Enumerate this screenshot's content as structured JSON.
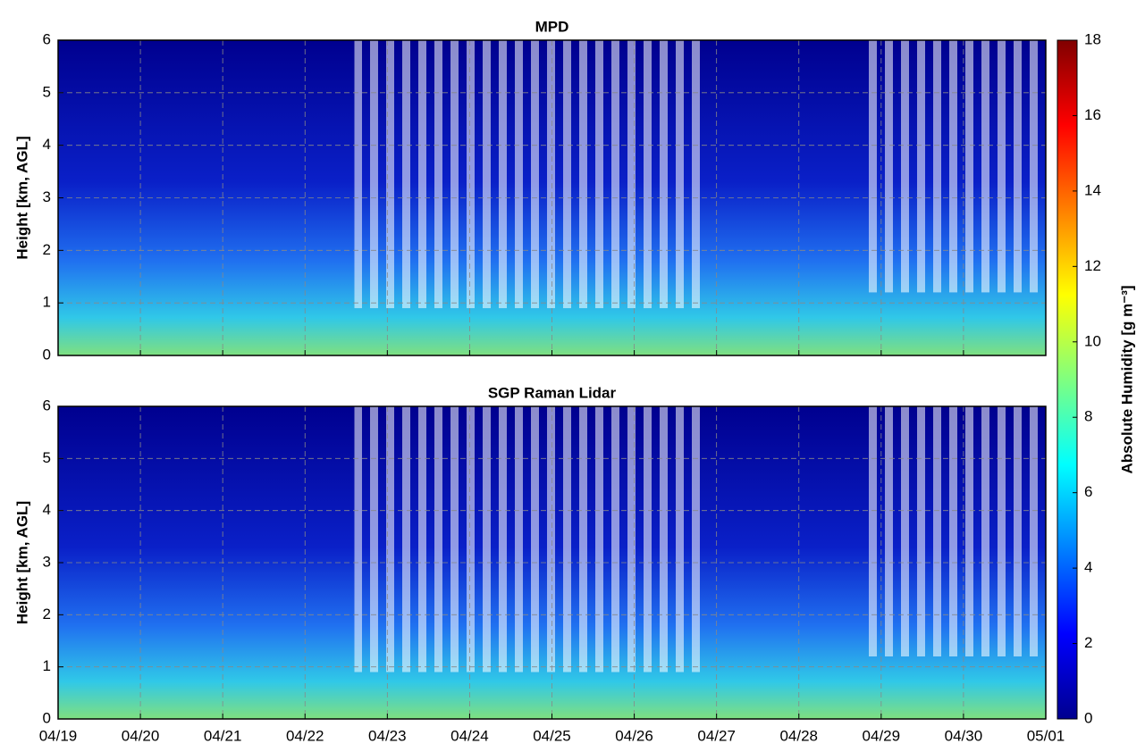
{
  "chart_data": [
    {
      "type": "heatmap",
      "title": "MPD",
      "ylabel": "Height [km, AGL]",
      "ylim": [
        0,
        6
      ],
      "yticks": [
        0,
        1,
        2,
        3,
        4,
        5,
        6
      ],
      "grid": true
    },
    {
      "type": "heatmap",
      "title": "SGP Raman Lidar",
      "ylabel": "Height [km, AGL]",
      "ylim": [
        0,
        6
      ],
      "yticks": [
        0,
        1,
        2,
        3,
        4,
        5,
        6
      ],
      "grid": true,
      "xticks": [
        "04/19",
        "04/20",
        "04/21",
        "04/22",
        "04/23",
        "04/24",
        "04/25",
        "04/26",
        "04/27",
        "04/28",
        "04/29",
        "04/30",
        "05/01"
      ],
      "colorbar": {
        "label": "Absolute Humidity [g m⁻³]",
        "lim": [
          0,
          18
        ],
        "ticks": [
          0,
          2,
          4,
          6,
          8,
          10,
          12,
          14,
          16,
          18
        ]
      }
    }
  ]
}
